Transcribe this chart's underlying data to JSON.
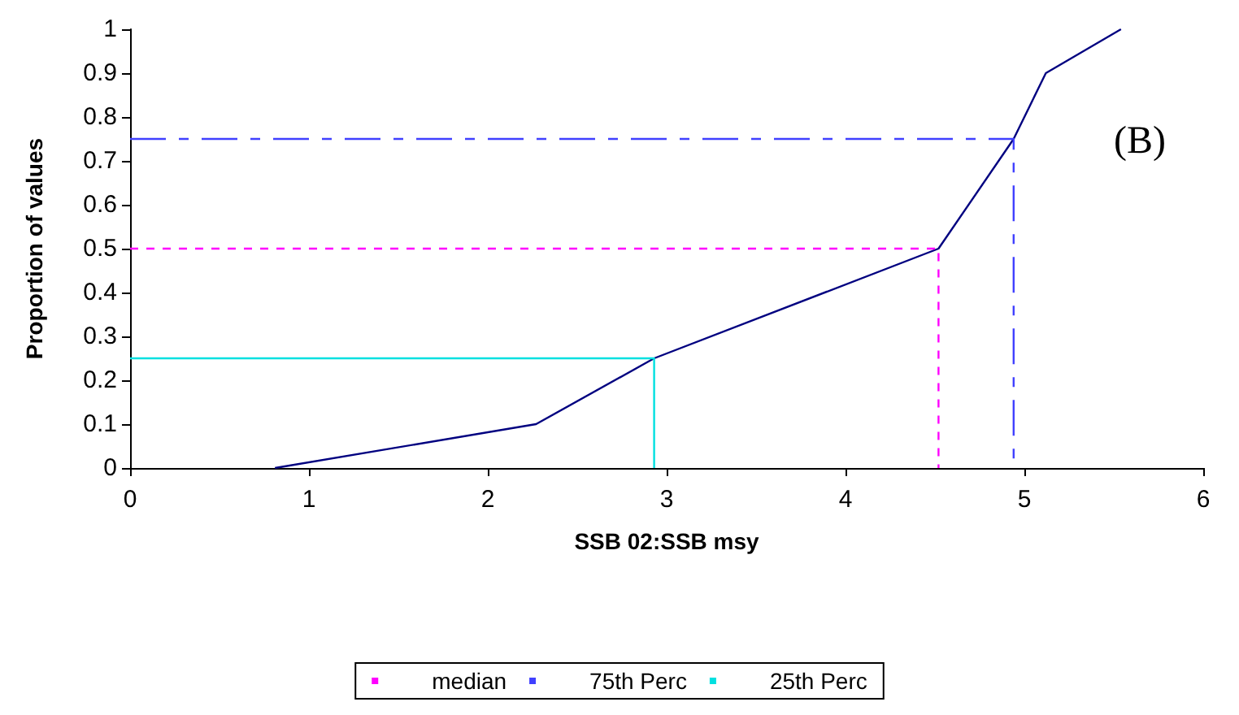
{
  "chart_data": {
    "type": "line",
    "xlabel": "SSB 02:SSB msy",
    "ylabel": "Proportion of values",
    "series": [
      {
        "color": "#000080",
        "x": [
          0.81,
          2.27,
          2.93,
          4.52,
          4.94,
          5.12,
          5.54
        ],
        "values": [
          0,
          0.1,
          0.25,
          0.5,
          0.75,
          0.9,
          1
        ],
        "line_style": "solid"
      },
      {
        "name": "median",
        "color": "#ff00ff",
        "x": [
          0,
          4.52,
          4.52
        ],
        "values": [
          0.5,
          0.5,
          0
        ],
        "line_style": "dashed"
      },
      {
        "name": "75th Perc",
        "color": "#4040ff",
        "x": [
          0,
          4.94,
          4.94
        ],
        "values": [
          0.75,
          0.75,
          0
        ],
        "line_style": "dashdot"
      },
      {
        "name": "25th Perc",
        "color": "#00e0e0",
        "x": [
          0,
          2.93,
          2.93
        ],
        "values": [
          0.25,
          0.25,
          0
        ],
        "line_style": "solid"
      }
    ],
    "xlim": [
      0,
      6
    ],
    "xticks": [
      0,
      1,
      2,
      3,
      4,
      5,
      6
    ],
    "ylim": [
      0,
      1
    ],
    "yticks": [
      0,
      0.1,
      0.2,
      0.3,
      0.4,
      0.5,
      0.6,
      0.7,
      0.8,
      0.9,
      1
    ],
    "annotations": [
      "(B)"
    ],
    "legend": "bottom",
    "marker": "none",
    "grid": false
  }
}
